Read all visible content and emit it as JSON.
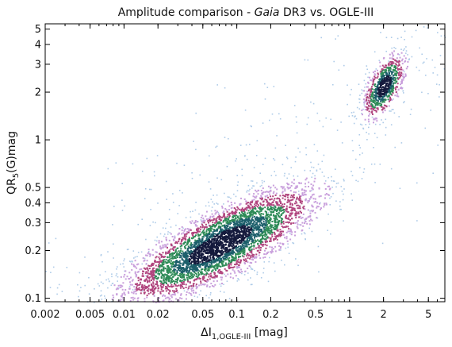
{
  "chart_data": {
    "type": "scatter",
    "title": {
      "pre": "Amplitude comparison - ",
      "italic": "Gaia",
      "post": " DR3 vs. OGLE-III"
    },
    "xlabel": {
      "pre": "ΔI",
      "sub": "1,OGLE-III",
      "post": " [mag]"
    },
    "ylabel": {
      "pre": "QR",
      "sub": "5",
      "post": "(G)mag"
    },
    "x_scale": "log",
    "y_scale": "log",
    "xlim": [
      0.002,
      7
    ],
    "ylim": [
      0.095,
      5.4
    ],
    "x_ticks": [
      {
        "value": 0.002,
        "label": "0.002"
      },
      {
        "value": 0.005,
        "label": "0.005"
      },
      {
        "value": 0.01,
        "label": "0.01"
      },
      {
        "value": 0.02,
        "label": "0.02"
      },
      {
        "value": 0.05,
        "label": "0.05"
      },
      {
        "value": 0.1,
        "label": "0.1"
      },
      {
        "value": 0.2,
        "label": "0.2"
      },
      {
        "value": 0.5,
        "label": "0.5"
      },
      {
        "value": 1,
        "label": "1"
      },
      {
        "value": 2,
        "label": "2"
      },
      {
        "value": 5,
        "label": "5"
      }
    ],
    "y_ticks": [
      {
        "value": 0.1,
        "label": "0.1"
      },
      {
        "value": 0.2,
        "label": "0.2"
      },
      {
        "value": 0.3,
        "label": "0.3"
      },
      {
        "value": 0.4,
        "label": "0.4"
      },
      {
        "value": 0.5,
        "label": "0.5"
      },
      {
        "value": 1,
        "label": "1"
      },
      {
        "value": 2,
        "label": "2"
      },
      {
        "value": 3,
        "label": "3"
      },
      {
        "value": 4,
        "label": "4"
      },
      {
        "value": 5,
        "label": "5"
      }
    ],
    "grid": false,
    "legend": "none",
    "density_colormap": [
      "#aecbe8",
      "#c9a0dc",
      "#b0457e",
      "#2e8b57",
      "#1c5f6b",
      "#141a3c"
    ],
    "density_clusters": [
      {
        "center_x": 0.07,
        "center_y": 0.22,
        "spread_x_dex": 0.42,
        "spread_y_dex": 0.18,
        "correlation": 0.8,
        "relative_weight": 0.85
      },
      {
        "center_x": 2.0,
        "center_y": 2.2,
        "spread_x_dex": 0.09,
        "spread_y_dex": 0.1,
        "correlation": 0.6,
        "relative_weight": 0.15
      }
    ]
  }
}
